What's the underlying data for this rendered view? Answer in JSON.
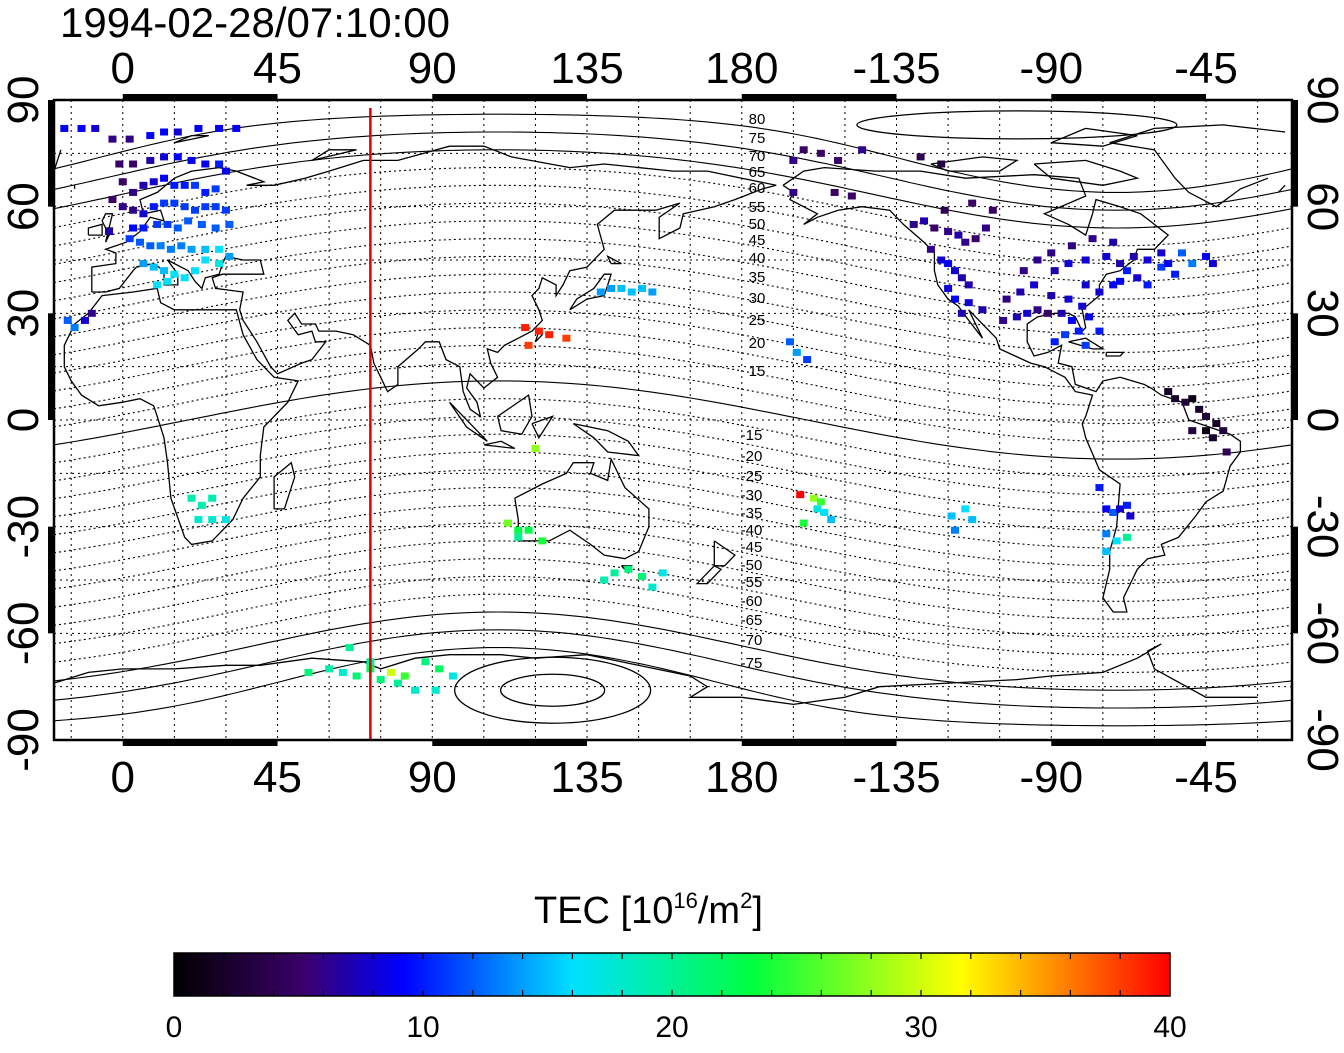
{
  "title": "1994-02-28/07:10:00",
  "map": {
    "projection": "equirectangular",
    "lon_center": 135,
    "x_tick_labels": [
      "0",
      "45",
      "90",
      "135",
      "180",
      "-135",
      "-90",
      "-45"
    ],
    "y_tick_labels": [
      "90",
      "60",
      "30",
      "0",
      "-30",
      "-60",
      "-90"
    ],
    "gridlines": "dotted, 15 degree spacing",
    "terminator_meridian_lon": 72,
    "terminator_color": "#e00000",
    "magnetic_latitude_labels": {
      "north": [
        "80",
        "75",
        "70",
        "65",
        "60",
        "55",
        "50",
        "45",
        "40",
        "35",
        "30",
        "25",
        "20",
        "15"
      ],
      "south": [
        "-15",
        "-20",
        "-25",
        "-30",
        "-35",
        "-40",
        "-45",
        "-50",
        "-55",
        "-60",
        "-65",
        "-70",
        "-75"
      ]
    }
  },
  "colorbar": {
    "label_prefix": "TEC  [10",
    "label_exp": "16",
    "label_mid": "/m",
    "label_exp2": "2",
    "label_suffix": "]",
    "range": [
      0,
      40
    ],
    "tick_labels": [
      "0",
      "10",
      "20",
      "30",
      "40"
    ],
    "stops": [
      "#000000",
      "#3b006a",
      "#0000ff",
      "#00e0ff",
      "#00ff40",
      "#ffff00",
      "#ff0000"
    ]
  },
  "chart_data": {
    "type": "scatter",
    "xlabel": "",
    "ylabel": "",
    "x_unit": "longitude (deg)",
    "y_unit": "latitude (deg)",
    "value_unit": "TEC 10^16/m^2",
    "points": [
      [
        -17,
        82,
        9
      ],
      [
        -12,
        82,
        9
      ],
      [
        -8,
        82,
        8
      ],
      [
        -3,
        79,
        6
      ],
      [
        2,
        79,
        6
      ],
      [
        8,
        80,
        9
      ],
      [
        12,
        81,
        9
      ],
      [
        16,
        81,
        8
      ],
      [
        22,
        82,
        9
      ],
      [
        28,
        82,
        9
      ],
      [
        33,
        82,
        9
      ],
      [
        -1,
        72,
        5
      ],
      [
        3,
        72,
        5
      ],
      [
        8,
        73,
        7
      ],
      [
        12,
        74,
        8
      ],
      [
        16,
        74,
        9
      ],
      [
        20,
        73,
        9
      ],
      [
        24,
        72,
        9
      ],
      [
        28,
        72,
        10
      ],
      [
        30,
        70,
        9
      ],
      [
        0,
        67,
        5
      ],
      [
        3,
        64,
        6
      ],
      [
        6,
        66,
        7
      ],
      [
        9,
        67,
        8
      ],
      [
        12,
        68,
        9
      ],
      [
        15,
        66,
        10
      ],
      [
        18,
        66,
        10
      ],
      [
        21,
        66,
        11
      ],
      [
        24,
        64,
        10
      ],
      [
        27,
        65,
        11
      ],
      [
        -3,
        62,
        5
      ],
      [
        0,
        60,
        6
      ],
      [
        3,
        59,
        6
      ],
      [
        6,
        58,
        8
      ],
      [
        9,
        60,
        10
      ],
      [
        12,
        61,
        11
      ],
      [
        15,
        61,
        11
      ],
      [
        18,
        60,
        11
      ],
      [
        21,
        59,
        11
      ],
      [
        24,
        60,
        11
      ],
      [
        27,
        60,
        11
      ],
      [
        30,
        59,
        11
      ],
      [
        -4,
        53,
        7
      ],
      [
        3,
        54,
        9
      ],
      [
        6,
        54,
        10
      ],
      [
        10,
        55,
        11
      ],
      [
        13,
        55,
        11
      ],
      [
        16,
        54,
        12
      ],
      [
        19,
        56,
        12
      ],
      [
        23,
        55,
        12
      ],
      [
        27,
        54,
        12
      ],
      [
        31,
        55,
        12
      ],
      [
        2,
        51,
        11
      ],
      [
        5,
        50,
        12
      ],
      [
        8,
        49,
        12
      ],
      [
        11,
        49,
        13
      ],
      [
        14,
        48,
        13
      ],
      [
        17,
        49,
        13
      ],
      [
        20,
        48,
        14
      ],
      [
        24,
        48,
        15
      ],
      [
        28,
        48,
        16
      ],
      [
        31,
        46,
        14
      ],
      [
        6,
        44,
        14
      ],
      [
        9,
        43,
        15
      ],
      [
        12,
        42,
        15
      ],
      [
        15,
        41,
        16
      ],
      [
        18,
        40,
        16
      ],
      [
        21,
        42,
        16
      ],
      [
        24,
        45,
        16
      ],
      [
        28,
        44,
        17
      ],
      [
        10,
        38,
        16
      ],
      [
        13,
        39,
        16
      ],
      [
        -16,
        28,
        12
      ],
      [
        -14,
        26,
        13
      ],
      [
        -11,
        28,
        8
      ],
      [
        -9,
        30,
        6
      ],
      [
        20,
        -22,
        19
      ],
      [
        23,
        -24,
        19
      ],
      [
        26,
        -22,
        19
      ],
      [
        22,
        -28,
        18
      ],
      [
        26,
        -28,
        18
      ],
      [
        30,
        -28,
        17
      ],
      [
        139,
        36,
        14
      ],
      [
        142,
        37,
        14
      ],
      [
        145,
        37,
        15
      ],
      [
        148,
        36,
        15
      ],
      [
        151,
        37,
        15
      ],
      [
        154,
        36,
        14
      ],
      [
        117,
        26,
        39
      ],
      [
        121,
        25,
        39
      ],
      [
        124,
        24,
        39
      ],
      [
        118,
        21,
        38
      ],
      [
        129,
        23,
        38
      ],
      [
        120,
        -8,
        28
      ],
      [
        112,
        -29,
        27
      ],
      [
        115,
        -31,
        23
      ],
      [
        118,
        -31,
        23
      ],
      [
        122,
        -34,
        24
      ],
      [
        115,
        -33,
        20
      ],
      [
        140,
        -45,
        19
      ],
      [
        143,
        -43,
        20
      ],
      [
        147,
        -42,
        21
      ],
      [
        151,
        -44,
        21
      ],
      [
        154,
        -47,
        18
      ],
      [
        157,
        -43,
        17
      ],
      [
        54,
        -71,
        21
      ],
      [
        60,
        -70,
        19
      ],
      [
        64,
        -71,
        18
      ],
      [
        68,
        -72,
        21
      ],
      [
        72,
        -70,
        22
      ],
      [
        78,
        -71,
        30
      ],
      [
        82,
        -72,
        25
      ],
      [
        75,
        -73,
        21
      ],
      [
        66,
        -64,
        20
      ],
      [
        72,
        -68,
        20
      ],
      [
        88,
        -68,
        21
      ],
      [
        92,
        -70,
        22
      ],
      [
        96,
        -72,
        17
      ],
      [
        91,
        -76,
        18
      ],
      [
        85,
        -76,
        18
      ],
      [
        80,
        -74,
        20
      ],
      [
        -163,
        -21,
        40
      ],
      [
        -159,
        -22,
        28
      ],
      [
        -157,
        -23,
        25
      ],
      [
        -158,
        -25,
        17
      ],
      [
        -156,
        -26,
        16
      ],
      [
        -154,
        -28,
        15
      ],
      [
        -162,
        -29,
        24
      ],
      [
        -119,
        -27,
        15
      ],
      [
        -115,
        -25,
        16
      ],
      [
        -113,
        -28,
        15
      ],
      [
        -118,
        -31,
        13
      ],
      [
        -76,
        -19,
        10
      ],
      [
        -74,
        -25,
        9
      ],
      [
        -72,
        -26,
        12
      ],
      [
        -70,
        -25,
        8
      ],
      [
        -68,
        -24,
        10
      ],
      [
        -67,
        -27,
        8
      ],
      [
        -74,
        -32,
        13
      ],
      [
        -71,
        -34,
        16
      ],
      [
        -68,
        -33,
        20
      ],
      [
        -74,
        -37,
        15
      ],
      [
        -166,
        22,
        12
      ],
      [
        -164,
        19,
        14
      ],
      [
        -161,
        17,
        11
      ],
      [
        -162,
        76,
        5
      ],
      [
        -165,
        73,
        6
      ],
      [
        -157,
        75,
        5
      ],
      [
        -152,
        73,
        5
      ],
      [
        -145,
        76,
        6
      ],
      [
        -165,
        64,
        6
      ],
      [
        -153,
        64,
        5
      ],
      [
        -148,
        63,
        5
      ],
      [
        -128,
        74,
        4
      ],
      [
        -122,
        72,
        3
      ],
      [
        -113,
        61,
        5
      ],
      [
        -107,
        59,
        5
      ],
      [
        -121,
        59,
        4
      ],
      [
        -130,
        55,
        6
      ],
      [
        -127,
        56,
        7
      ],
      [
        -124,
        54,
        5
      ],
      [
        -120,
        53,
        6
      ],
      [
        -117,
        52,
        7
      ],
      [
        -115,
        50,
        6
      ],
      [
        -112,
        51,
        5
      ],
      [
        -109,
        54,
        6
      ],
      [
        -125,
        48,
        6
      ],
      [
        -122,
        45,
        8
      ],
      [
        -120,
        44,
        9
      ],
      [
        -118,
        42,
        8
      ],
      [
        -116,
        40,
        7
      ],
      [
        -114,
        38,
        7
      ],
      [
        -120,
        37,
        8
      ],
      [
        -118,
        34,
        9
      ],
      [
        -114,
        33,
        8
      ],
      [
        -110,
        31,
        7
      ],
      [
        -116,
        30,
        7
      ],
      [
        -104,
        28,
        6
      ],
      [
        -100,
        29,
        7
      ],
      [
        -97,
        30,
        8
      ],
      [
        -94,
        31,
        6
      ],
      [
        -91,
        30,
        5
      ],
      [
        -87,
        30,
        7
      ],
      [
        -103,
        34,
        6
      ],
      [
        -99,
        36,
        7
      ],
      [
        -95,
        38,
        8
      ],
      [
        -90,
        35,
        7
      ],
      [
        -85,
        34,
        8
      ],
      [
        -81,
        32,
        8
      ],
      [
        -79,
        29,
        9
      ],
      [
        -76,
        25,
        10
      ],
      [
        -82,
        25,
        10
      ],
      [
        -80,
        21,
        11
      ],
      [
        -86,
        24,
        11
      ],
      [
        -89,
        22,
        10
      ],
      [
        -84,
        28,
        9
      ],
      [
        -80,
        38,
        8
      ],
      [
        -76,
        36,
        8
      ],
      [
        -72,
        38,
        9
      ],
      [
        -70,
        39,
        9
      ],
      [
        -68,
        42,
        10
      ],
      [
        -65,
        40,
        8
      ],
      [
        -62,
        38,
        10
      ],
      [
        -58,
        43,
        11
      ],
      [
        -52,
        47,
        12
      ],
      [
        -49,
        44,
        13
      ],
      [
        -45,
        46,
        9
      ],
      [
        -43,
        44,
        8
      ],
      [
        -89,
        42,
        7
      ],
      [
        -85,
        44,
        8
      ],
      [
        -80,
        45,
        8
      ],
      [
        -74,
        46,
        8
      ],
      [
        -70,
        44,
        7
      ],
      [
        -66,
        46,
        7
      ],
      [
        -62,
        45,
        8
      ],
      [
        -58,
        47,
        8
      ],
      [
        -56,
        44,
        9
      ],
      [
        -54,
        41,
        10
      ],
      [
        -98,
        42,
        6
      ],
      [
        -94,
        45,
        6
      ],
      [
        -90,
        47,
        6
      ],
      [
        -84,
        49,
        6
      ],
      [
        -78,
        51,
        6
      ],
      [
        -72,
        50,
        7
      ],
      [
        -56,
        8,
        2
      ],
      [
        -54,
        6,
        2
      ],
      [
        -51,
        5,
        3
      ],
      [
        -49,
        6,
        1
      ],
      [
        -47,
        3,
        2
      ],
      [
        -45,
        1,
        3
      ],
      [
        -42,
        -1,
        2
      ],
      [
        -40,
        -3,
        3
      ],
      [
        -43,
        -5,
        2
      ],
      [
        -39,
        -9,
        4
      ],
      [
        -49,
        -3,
        3
      ],
      [
        -45,
        -3,
        1
      ]
    ]
  }
}
